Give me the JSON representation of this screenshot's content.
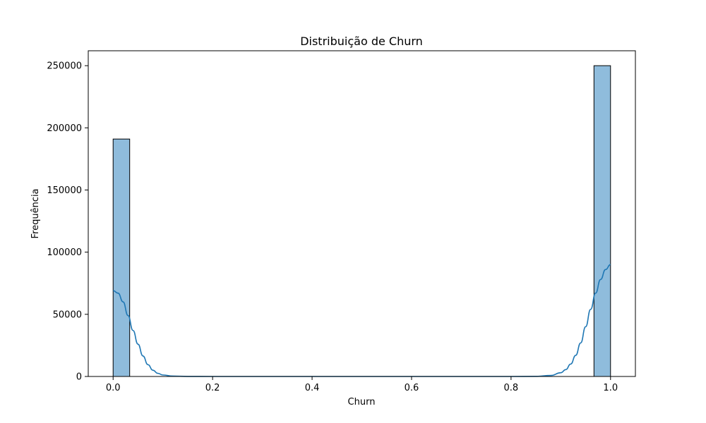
{
  "chart_data": {
    "type": "bar",
    "title": "Distribuição de Churn",
    "xlabel": "Churn",
    "ylabel": "Frequência",
    "xlim": [
      -0.05,
      1.05
    ],
    "ylim": [
      0,
      262000
    ],
    "xticks": [
      0.0,
      0.2,
      0.4,
      0.6,
      0.8,
      1.0
    ],
    "xtick_labels": [
      "0.0",
      "0.2",
      "0.4",
      "0.6",
      "0.8",
      "1.0"
    ],
    "yticks": [
      0,
      50000,
      100000,
      150000,
      200000,
      250000
    ],
    "ytick_labels": [
      "0",
      "50000",
      "100000",
      "150000",
      "200000",
      "250000"
    ],
    "grid": false,
    "bars": [
      {
        "x0": 0.0,
        "x1": 0.0333,
        "value": 191000
      },
      {
        "x0": 0.9667,
        "x1": 1.0,
        "value": 250000
      }
    ],
    "kde": {
      "x": [
        0.0,
        0.01,
        0.02,
        0.03,
        0.04,
        0.05,
        0.06,
        0.07,
        0.08,
        0.09,
        0.1,
        0.12,
        0.15,
        0.2,
        0.4,
        0.6,
        0.8,
        0.85,
        0.88,
        0.9,
        0.91,
        0.92,
        0.93,
        0.94,
        0.95,
        0.96,
        0.97,
        0.98,
        0.99,
        1.0
      ],
      "y": [
        69000,
        67000,
        60000,
        49000,
        37000,
        26000,
        16500,
        9500,
        5000,
        2500,
        1200,
        300,
        50,
        0,
        0,
        0,
        0,
        100,
        800,
        3000,
        5500,
        10000,
        17000,
        27000,
        40000,
        54000,
        67000,
        78000,
        86000,
        90000
      ]
    },
    "colors": {
      "bar_fill": "#8fbcdc",
      "bar_edge": "#000000",
      "kde_line": "#1f77b4"
    }
  }
}
